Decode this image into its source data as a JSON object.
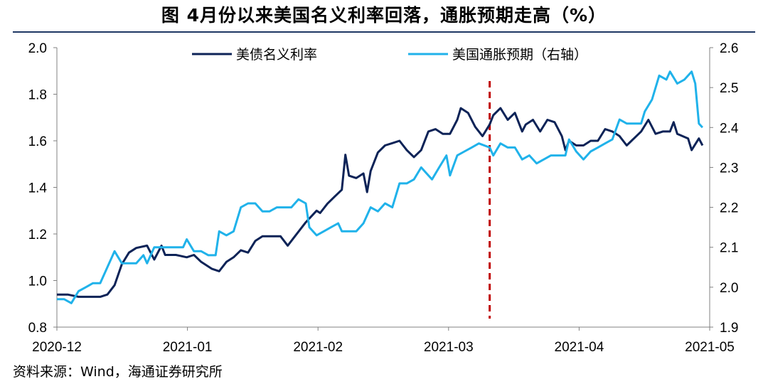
{
  "title": "图 4月份以来美国名义利率回落，通胀预期走高（%）",
  "source": "资料来源：Wind，海通证券研究所",
  "chart_data": {
    "type": "line",
    "x_tick_labels": [
      "2020-12",
      "2021-01",
      "2021-02",
      "2021-03",
      "2021-04",
      "2021-05"
    ],
    "ylim_left": [
      0.8,
      2.0
    ],
    "yticks_left": [
      "0.8",
      "1.0",
      "1.2",
      "1.4",
      "1.6",
      "1.8",
      "2.0"
    ],
    "ylim_right": [
      1.9,
      2.6
    ],
    "yticks_right": [
      "1.9",
      "2.0",
      "2.1",
      "2.2",
      "2.3",
      "2.4",
      "2.5",
      "2.6"
    ],
    "grid": false,
    "legend_position": "top",
    "vline_date": "2021-03-31",
    "series": [
      {
        "name": "美债名义利率",
        "axis": "left",
        "color": "#0d2357",
        "points": [
          [
            "2020-12-01",
            0.94
          ],
          [
            "2020-12-04",
            0.94
          ],
          [
            "2020-12-07",
            0.93
          ],
          [
            "2020-12-10",
            0.93
          ],
          [
            "2020-12-13",
            0.93
          ],
          [
            "2020-12-15",
            0.94
          ],
          [
            "2020-12-17",
            0.98
          ],
          [
            "2020-12-19",
            1.07
          ],
          [
            "2020-12-21",
            1.12
          ],
          [
            "2020-12-23",
            1.14
          ],
          [
            "2020-12-26",
            1.15
          ],
          [
            "2020-12-28",
            1.09
          ],
          [
            "2020-12-30",
            1.15
          ],
          [
            "2020-12-31",
            1.11
          ],
          [
            "2021-01-03",
            1.11
          ],
          [
            "2021-01-06",
            1.1
          ],
          [
            "2021-01-08",
            1.11
          ],
          [
            "2021-01-10",
            1.08
          ],
          [
            "2021-01-13",
            1.05
          ],
          [
            "2021-01-15",
            1.04
          ],
          [
            "2021-01-17",
            1.08
          ],
          [
            "2021-01-19",
            1.1
          ],
          [
            "2021-01-21",
            1.13
          ],
          [
            "2021-01-23",
            1.12
          ],
          [
            "2021-01-25",
            1.17
          ],
          [
            "2021-01-27",
            1.19
          ],
          [
            "2021-01-29",
            1.19
          ],
          [
            "2021-02-01",
            1.19
          ],
          [
            "2021-02-03",
            1.15
          ],
          [
            "2021-02-05",
            1.19
          ],
          [
            "2021-02-08",
            1.25
          ],
          [
            "2021-02-11",
            1.3
          ],
          [
            "2021-02-12",
            1.29
          ],
          [
            "2021-02-14",
            1.33
          ],
          [
            "2021-02-16",
            1.36
          ],
          [
            "2021-02-18",
            1.39
          ],
          [
            "2021-02-19",
            1.54
          ],
          [
            "2021-02-20",
            1.45
          ],
          [
            "2021-02-22",
            1.44
          ],
          [
            "2021-02-24",
            1.46
          ],
          [
            "2021-02-25",
            1.38
          ],
          [
            "2021-02-26",
            1.47
          ],
          [
            "2021-02-28",
            1.55
          ],
          [
            "2021-03-02",
            1.58
          ],
          [
            "2021-03-04",
            1.59
          ],
          [
            "2021-03-06",
            1.6
          ],
          [
            "2021-03-08",
            1.56
          ],
          [
            "2021-03-10",
            1.53
          ],
          [
            "2021-03-12",
            1.56
          ],
          [
            "2021-03-14",
            1.64
          ],
          [
            "2021-03-16",
            1.65
          ],
          [
            "2021-03-18",
            1.63
          ],
          [
            "2021-03-20",
            1.63
          ],
          [
            "2021-03-22",
            1.69
          ],
          [
            "2021-03-23",
            1.74
          ],
          [
            "2021-03-25",
            1.72
          ],
          [
            "2021-03-27",
            1.66
          ],
          [
            "2021-03-29",
            1.62
          ],
          [
            "2021-03-31",
            1.67
          ],
          [
            "2021-04-01",
            1.71
          ],
          [
            "2021-04-03",
            1.74
          ],
          [
            "2021-04-05",
            1.69
          ],
          [
            "2021-04-07",
            1.72
          ],
          [
            "2021-04-09",
            1.64
          ],
          [
            "2021-04-10",
            1.67
          ],
          [
            "2021-04-12",
            1.69
          ],
          [
            "2021-04-14",
            1.64
          ],
          [
            "2021-04-16",
            1.69
          ],
          [
            "2021-04-18",
            1.68
          ],
          [
            "2021-04-20",
            1.62
          ],
          [
            "2021-04-21",
            1.56
          ],
          [
            "2021-04-22",
            1.6
          ],
          [
            "2021-04-24",
            1.58
          ],
          [
            "2021-04-26",
            1.58
          ],
          [
            "2021-04-28",
            1.6
          ],
          [
            "2021-04-30",
            1.6
          ],
          [
            "2021-05-02",
            1.65
          ],
          [
            "2021-05-04",
            1.64
          ],
          [
            "2021-05-06",
            1.62
          ],
          [
            "2021-05-08",
            1.58
          ],
          [
            "2021-05-10",
            1.61
          ],
          [
            "2021-05-12",
            1.64
          ],
          [
            "2021-05-14",
            1.69
          ],
          [
            "2021-05-16",
            1.63
          ],
          [
            "2021-05-18",
            1.64
          ],
          [
            "2021-05-20",
            1.64
          ],
          [
            "2021-05-21",
            1.68
          ],
          [
            "2021-05-22",
            1.63
          ],
          [
            "2021-05-25",
            1.61
          ],
          [
            "2021-05-26",
            1.56
          ],
          [
            "2021-05-28",
            1.61
          ],
          [
            "2021-05-29",
            1.58
          ]
        ]
      },
      {
        "name": "美国通胀预期（右轴）",
        "axis": "right",
        "color": "#20b2ea",
        "points": [
          [
            "2020-12-01",
            1.97
          ],
          [
            "2020-12-03",
            1.97
          ],
          [
            "2020-12-05",
            1.96
          ],
          [
            "2020-12-07",
            1.99
          ],
          [
            "2020-12-09",
            2.0
          ],
          [
            "2020-12-11",
            2.01
          ],
          [
            "2020-12-13",
            2.01
          ],
          [
            "2020-12-15",
            2.05
          ],
          [
            "2020-12-17",
            2.09
          ],
          [
            "2020-12-19",
            2.06
          ],
          [
            "2020-12-21",
            2.06
          ],
          [
            "2020-12-23",
            2.06
          ],
          [
            "2020-12-25",
            2.08
          ],
          [
            "2020-12-26",
            2.06
          ],
          [
            "2020-12-28",
            2.1
          ],
          [
            "2020-12-31",
            2.1
          ],
          [
            "2021-01-03",
            2.1
          ],
          [
            "2021-01-05",
            2.1
          ],
          [
            "2021-01-06",
            2.12
          ],
          [
            "2021-01-08",
            2.09
          ],
          [
            "2021-01-10",
            2.09
          ],
          [
            "2021-01-12",
            2.08
          ],
          [
            "2021-01-14",
            2.08
          ],
          [
            "2021-01-15",
            2.14
          ],
          [
            "2021-01-17",
            2.13
          ],
          [
            "2021-01-19",
            2.14
          ],
          [
            "2021-01-21",
            2.2
          ],
          [
            "2021-01-23",
            2.21
          ],
          [
            "2021-01-25",
            2.21
          ],
          [
            "2021-01-27",
            2.19
          ],
          [
            "2021-01-29",
            2.19
          ],
          [
            "2021-01-31",
            2.2
          ],
          [
            "2021-02-02",
            2.2
          ],
          [
            "2021-02-04",
            2.2
          ],
          [
            "2021-02-06",
            2.22
          ],
          [
            "2021-02-08",
            2.21
          ],
          [
            "2021-02-09",
            2.15
          ],
          [
            "2021-02-11",
            2.13
          ],
          [
            "2021-02-13",
            2.14
          ],
          [
            "2021-02-15",
            2.15
          ],
          [
            "2021-02-17",
            2.16
          ],
          [
            "2021-02-18",
            2.14
          ],
          [
            "2021-02-20",
            2.14
          ],
          [
            "2021-02-22",
            2.14
          ],
          [
            "2021-02-24",
            2.16
          ],
          [
            "2021-02-26",
            2.2
          ],
          [
            "2021-02-28",
            2.19
          ],
          [
            "2021-03-02",
            2.21
          ],
          [
            "2021-03-04",
            2.2
          ],
          [
            "2021-03-06",
            2.26
          ],
          [
            "2021-03-08",
            2.26
          ],
          [
            "2021-03-10",
            2.27
          ],
          [
            "2021-03-12",
            2.3
          ],
          [
            "2021-03-13",
            2.29
          ],
          [
            "2021-03-15",
            2.27
          ],
          [
            "2021-03-17",
            2.3
          ],
          [
            "2021-03-19",
            2.33
          ],
          [
            "2021-03-20",
            2.28
          ],
          [
            "2021-03-22",
            2.33
          ],
          [
            "2021-03-24",
            2.34
          ],
          [
            "2021-03-26",
            2.35
          ],
          [
            "2021-03-28",
            2.36
          ],
          [
            "2021-03-31",
            2.35
          ],
          [
            "2021-04-01",
            2.33
          ],
          [
            "2021-04-03",
            2.36
          ],
          [
            "2021-04-05",
            2.35
          ],
          [
            "2021-04-07",
            2.35
          ],
          [
            "2021-04-09",
            2.32
          ],
          [
            "2021-04-11",
            2.33
          ],
          [
            "2021-04-13",
            2.31
          ],
          [
            "2021-04-15",
            2.32
          ],
          [
            "2021-04-17",
            2.33
          ],
          [
            "2021-04-19",
            2.33
          ],
          [
            "2021-04-21",
            2.33
          ],
          [
            "2021-04-22",
            2.37
          ],
          [
            "2021-04-24",
            2.34
          ],
          [
            "2021-04-26",
            2.32
          ],
          [
            "2021-04-28",
            2.34
          ],
          [
            "2021-04-30",
            2.35
          ],
          [
            "2021-05-02",
            2.36
          ],
          [
            "2021-05-04",
            2.37
          ],
          [
            "2021-05-06",
            2.42
          ],
          [
            "2021-05-08",
            2.41
          ],
          [
            "2021-05-10",
            2.41
          ],
          [
            "2021-05-12",
            2.41
          ],
          [
            "2021-05-13",
            2.44
          ],
          [
            "2021-05-15",
            2.47
          ],
          [
            "2021-05-17",
            2.53
          ],
          [
            "2021-05-19",
            2.52
          ],
          [
            "2021-05-20",
            2.54
          ],
          [
            "2021-05-22",
            2.51
          ],
          [
            "2021-05-24",
            2.52
          ],
          [
            "2021-05-26",
            2.54
          ],
          [
            "2021-05-27",
            2.51
          ],
          [
            "2021-05-28",
            2.41
          ],
          [
            "2021-05-29",
            2.4
          ]
        ]
      }
    ]
  }
}
